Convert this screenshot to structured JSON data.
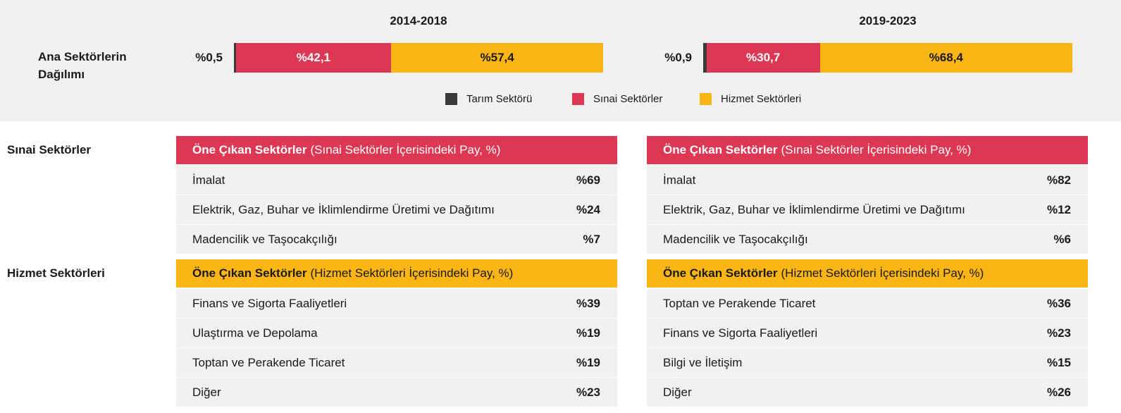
{
  "distribution": {
    "label": "Ana Sektörlerin Dağılımı",
    "legend": [
      "Tarım Sektörü",
      "Sınai Sektörler",
      "Hizmet Sektörleri"
    ],
    "colors": [
      "#3a3a3c",
      "#dc3853",
      "#fbb515"
    ],
    "panels": [
      {
        "period": "2014-2018",
        "values": [
          0.5,
          42.1,
          57.4
        ],
        "value_labels": [
          "%0,5",
          "%42,1",
          "%57,4"
        ]
      },
      {
        "period": "2019-2023",
        "values": [
          0.9,
          30.7,
          68.4
        ],
        "value_labels": [
          "%0,9",
          "%30,7",
          "%68,4"
        ]
      }
    ]
  },
  "sections": [
    {
      "label": "Sınai Sektörler",
      "color": "#dc3853",
      "header_text_color": "#ffffff",
      "tables": [
        {
          "header_bold": "Öne Çıkan Sektörler",
          "header_rest": "(Sınai Sektörler İçerisindeki Pay, %)",
          "rows": [
            [
              "İmalat",
              "%69"
            ],
            [
              "Elektrik, Gaz, Buhar ve İklimlendirme Üretimi ve Dağıtımı",
              "%24"
            ],
            [
              "Madencilik ve Taşocakçılığı",
              "%7"
            ]
          ]
        },
        {
          "header_bold": "Öne Çıkan Sektörler",
          "header_rest": "(Sınai Sektörler İçerisindeki Pay, %)",
          "rows": [
            [
              "İmalat",
              "%82"
            ],
            [
              "Elektrik, Gaz, Buhar ve İklimlendirme Üretimi ve Dağıtımı",
              "%12"
            ],
            [
              "Madencilik ve Taşocakçılığı",
              "%6"
            ]
          ]
        }
      ]
    },
    {
      "label": "Hizmet Sektörleri",
      "color": "#fbb515",
      "header_text_color": "#1a1a1a",
      "tables": [
        {
          "header_bold": "Öne Çıkan Sektörler",
          "header_rest": "(Hizmet Sektörleri İçerisindeki Pay, %)",
          "rows": [
            [
              "Finans ve Sigorta Faaliyetleri",
              "%39"
            ],
            [
              "Ulaştırma ve Depolama",
              "%19"
            ],
            [
              "Toptan ve Perakende Ticaret",
              "%19"
            ],
            [
              "Diğer",
              "%23"
            ]
          ]
        },
        {
          "header_bold": "Öne Çıkan Sektörler",
          "header_rest": "(Hizmet Sektörleri İçerisindeki Pay, %)",
          "rows": [
            [
              "Toptan ve Perakende Ticaret",
              "%36"
            ],
            [
              "Finans ve Sigorta Faaliyetleri",
              "%23"
            ],
            [
              "Bilgi ve İletişim",
              "%15"
            ],
            [
              "Diğer",
              "%26"
            ]
          ]
        }
      ]
    }
  ]
}
